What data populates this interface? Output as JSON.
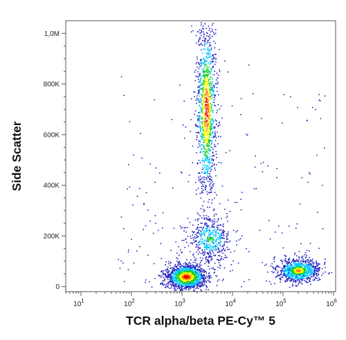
{
  "chart_data": {
    "type": "scatter",
    "subtype": "flow-cytometry density dot plot",
    "xlabel": "TCR alpha/beta PE-Cy™ 5",
    "ylabel": "Side Scatter",
    "x_scale": "log",
    "y_scale": "linear",
    "xlim": [
      5,
      1100000
    ],
    "ylim": [
      -20000,
      1050000
    ],
    "x_ticks": [
      10,
      100,
      1000,
      10000,
      100000,
      1000000
    ],
    "x_tick_labels": [
      {
        "base": "10",
        "exp": "1"
      },
      {
        "base": "10",
        "exp": "2"
      },
      {
        "base": "10",
        "exp": "3"
      },
      {
        "base": "10",
        "exp": "4"
      },
      {
        "base": "10",
        "exp": "5"
      },
      {
        "base": "10",
        "exp": "6"
      }
    ],
    "y_ticks": [
      0,
      200000,
      400000,
      600000,
      800000,
      1000000
    ],
    "y_tick_labels": [
      "0",
      "200K",
      "400K",
      "600K",
      "800K",
      "1,0M"
    ],
    "grid": false,
    "color_scale": [
      "#1f1fbf",
      "#00c8ff",
      "#18d018",
      "#ffff00",
      "#ff8000",
      "#e00000"
    ],
    "populations": [
      {
        "center_x": 1200,
        "center_y": 40000,
        "spread_logx": 0.2,
        "spread_y": 25000,
        "relative_density": 1.0
      },
      {
        "center_x": 3000,
        "center_y": 700000,
        "spread_logx": 0.1,
        "spread_y": 180000,
        "relative_density": 0.9
      },
      {
        "center_x": 3500,
        "center_y": 190000,
        "spread_logx": 0.22,
        "spread_y": 45000,
        "relative_density": 0.35
      },
      {
        "center_x": 200000,
        "center_y": 65000,
        "spread_logx": 0.2,
        "spread_y": 22000,
        "relative_density": 0.7
      }
    ]
  }
}
